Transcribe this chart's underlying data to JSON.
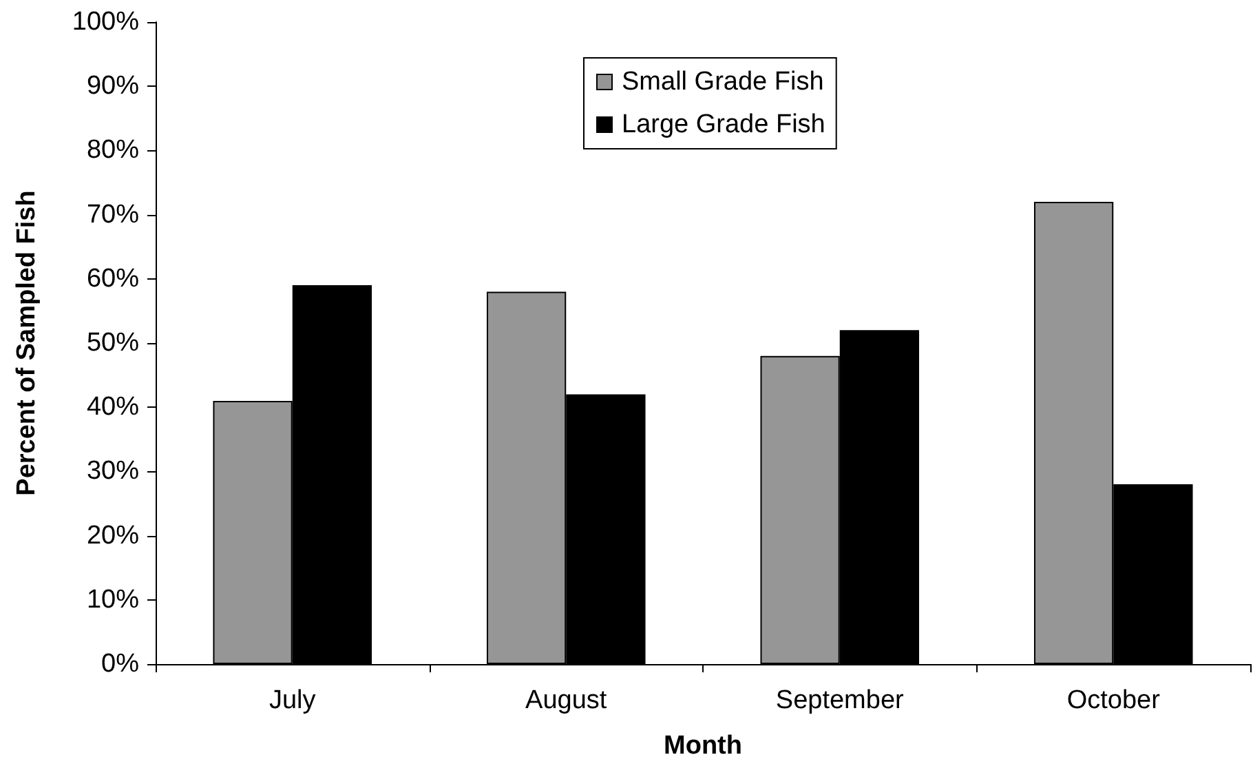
{
  "chart_data": {
    "type": "bar",
    "xlabel": "Month",
    "ylabel": "Percent of Sampled Fish",
    "categories": [
      "July",
      "August",
      "September",
      "October"
    ],
    "series": [
      {
        "name": "Small Grade Fish",
        "color": "#969696",
        "values": [
          41,
          58,
          48,
          72
        ]
      },
      {
        "name": "Large Grade Fish",
        "color": "#000000",
        "values": [
          59,
          42,
          52,
          28
        ]
      }
    ],
    "ylim": [
      0,
      100
    ],
    "yticks": [
      {
        "value": 0,
        "label": "0%"
      },
      {
        "value": 10,
        "label": "10%"
      },
      {
        "value": 20,
        "label": "20%"
      },
      {
        "value": 30,
        "label": "30%"
      },
      {
        "value": 40,
        "label": "40%"
      },
      {
        "value": 50,
        "label": "50%"
      },
      {
        "value": 60,
        "label": "60%"
      },
      {
        "value": 70,
        "label": "70%"
      },
      {
        "value": 80,
        "label": "80%"
      },
      {
        "value": 90,
        "label": "90%"
      },
      {
        "value": 100,
        "label": "100%"
      }
    ],
    "grid": false,
    "legend": "top"
  }
}
